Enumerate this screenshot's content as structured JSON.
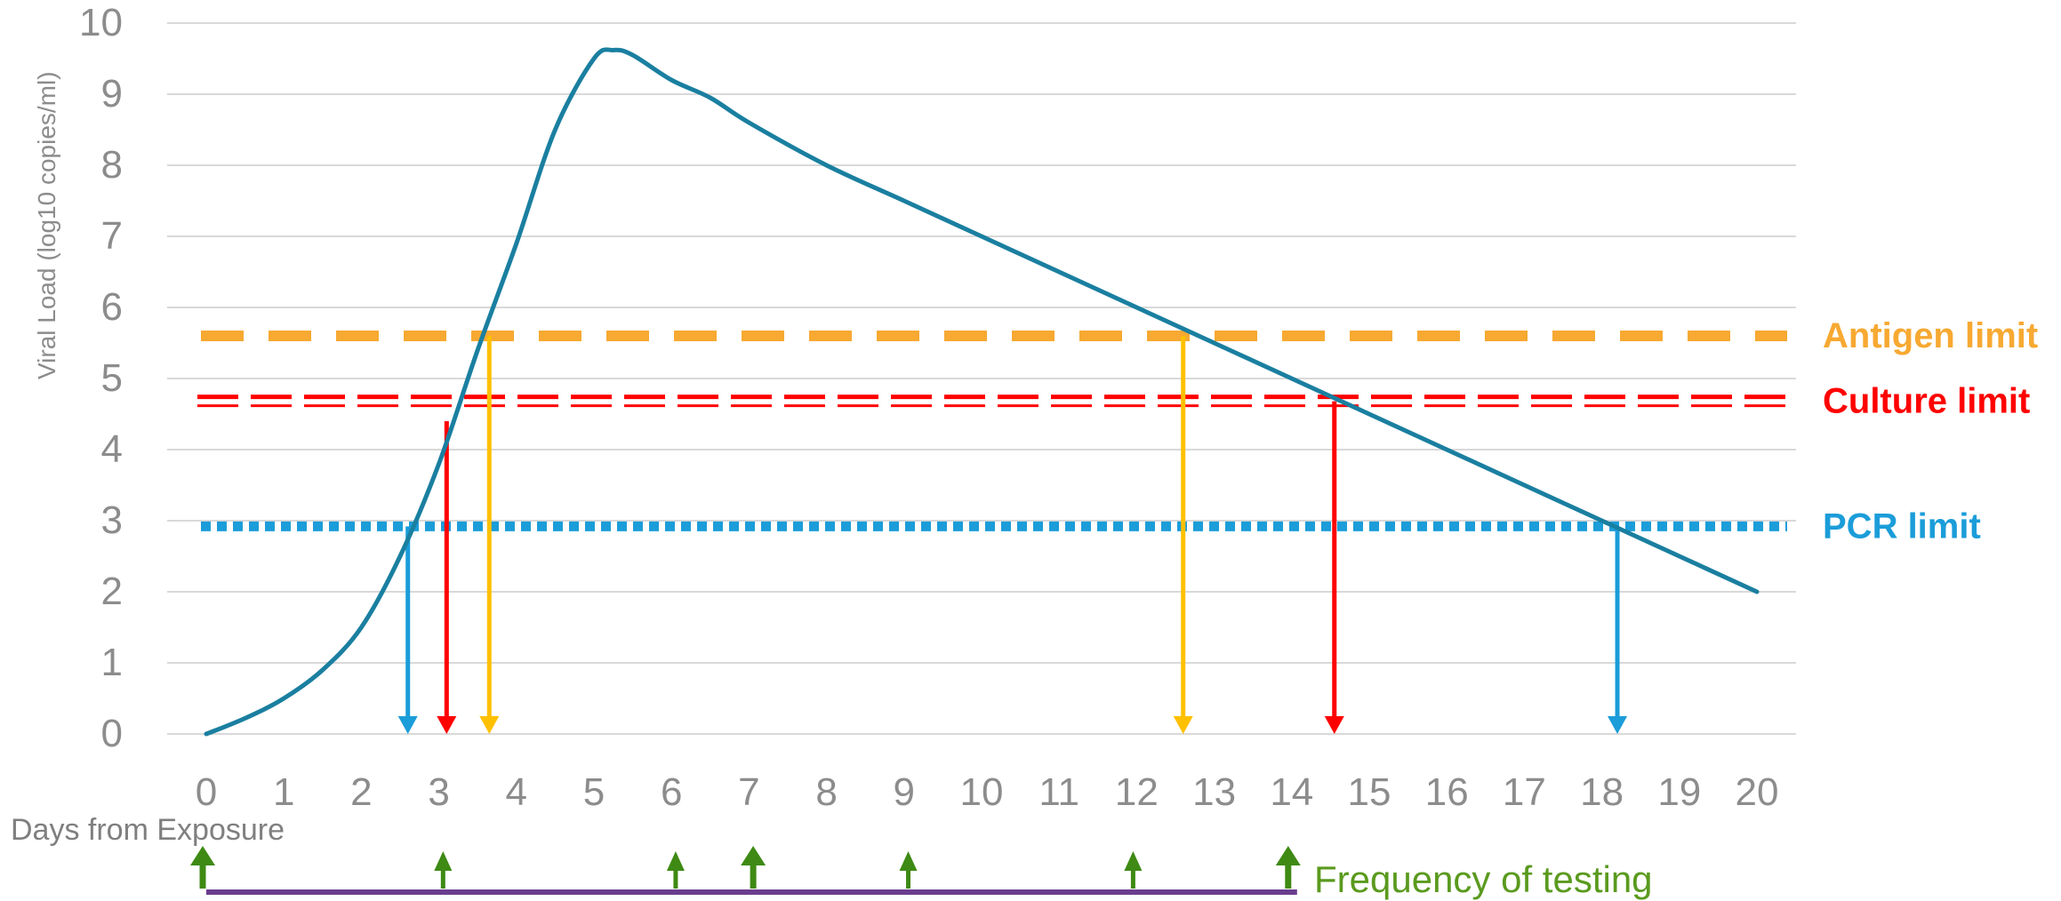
{
  "chart_data": {
    "type": "line",
    "xlabel": "Days from Exposure",
    "ylabel": "Viral Load (log10 copies/ml)",
    "x_ticks": [
      0,
      1,
      2,
      3,
      4,
      5,
      6,
      7,
      8,
      9,
      10,
      11,
      12,
      13,
      14,
      15,
      16,
      17,
      18,
      19,
      20
    ],
    "y_ticks": [
      0,
      1,
      2,
      3,
      4,
      5,
      6,
      7,
      8,
      9,
      10
    ],
    "xlim": [
      0,
      20
    ],
    "ylim": [
      0,
      10
    ],
    "grid": "horizontal",
    "series": [
      {
        "x": [
          0,
          0.5,
          1,
          1.5,
          2,
          2.5,
          3,
          3.5,
          4,
          4.5,
          5,
          5.25,
          5.5,
          6,
          6.5,
          7,
          8,
          9,
          10,
          11,
          12,
          13,
          14,
          15,
          16,
          17,
          18,
          19,
          20
        ],
        "y": [
          0,
          0.22,
          0.5,
          0.9,
          1.5,
          2.5,
          3.8,
          5.4,
          6.9,
          8.5,
          9.5,
          9.62,
          9.55,
          9.2,
          8.95,
          8.6,
          8.0,
          7.5,
          7.0,
          6.5,
          6.0,
          5.5,
          5.0,
          4.5,
          4.0,
          3.5,
          3.0,
          2.5,
          2.0
        ],
        "color": "#1a7fa0"
      }
    ],
    "thresholds": [
      {
        "name": "Antigen limit",
        "value": 5.6,
        "color": "#f7a932",
        "style": "dashed"
      },
      {
        "name": "Culture limit",
        "value": 4.68,
        "color": "#ff0000",
        "style": "double-dashed"
      },
      {
        "name": "PCR limit",
        "value": 2.92,
        "color": "#1b9dd9",
        "style": "dotted"
      }
    ],
    "crossing_arrows": [
      {
        "x": 2.6,
        "from": 2.92,
        "color": "#1b9dd9"
      },
      {
        "x": 3.1,
        "from": 4.4,
        "color": "#ff0000"
      },
      {
        "x": 3.65,
        "from": 5.6,
        "color": "#ffc000"
      },
      {
        "x": 12.6,
        "from": 5.6,
        "color": "#ffc000"
      },
      {
        "x": 14.55,
        "from": 4.68,
        "color": "#ff0000"
      },
      {
        "x": 18.2,
        "from": 2.92,
        "color": "#1b9dd9"
      }
    ],
    "testing": {
      "label": "Frequency of testing",
      "label_color": "#5a9a1e",
      "arrow_color": "#3e8a14",
      "bar_color": "#6a3d8f",
      "bar_range": [
        0,
        14
      ],
      "test_days": [
        0,
        3.1,
        6.1,
        7.1,
        9.1,
        12,
        14
      ]
    },
    "colors": {
      "grid": "#d9d9d9",
      "tick_text": "#8c8c8c",
      "axis_title": "#8c8c8c",
      "label_text": "#7f7f7f"
    }
  }
}
